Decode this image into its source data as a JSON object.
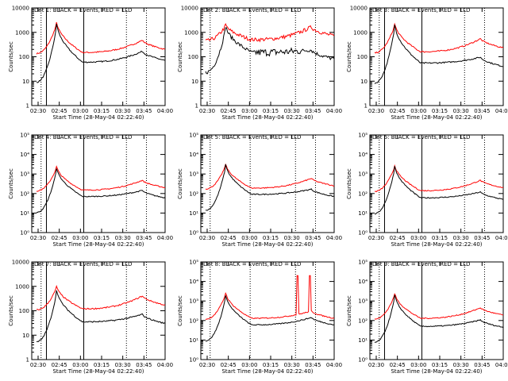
{
  "chart_data": [
    {
      "type": "line",
      "title": "Det 1: BLACK = Events, RED = LLD",
      "xlabel": "Start Time (28-May-04 02:22:40)",
      "ylabel": "Counts/sec",
      "yscale": "log",
      "ylim": [
        1,
        10000
      ],
      "yticks": [
        "1",
        "10",
        "100",
        "1000",
        "10000"
      ],
      "xticks": [
        "02:30",
        "02:45",
        "03:00",
        "03:15",
        "03:30",
        "03:45",
        "04:00"
      ],
      "xlim": [
        0,
        100
      ],
      "vlines_solid": [
        11,
        39
      ],
      "vlines_dotted": [
        7,
        71,
        86
      ],
      "shape": "A",
      "series": [
        {
          "color": "#000000",
          "peak": 2200,
          "base": 60,
          "end": 70
        },
        {
          "color": "#ff0000",
          "peak": 2500,
          "base": 150,
          "end": 200
        }
      ]
    },
    {
      "type": "line",
      "title": "Det 2: BLACK = Events, RED = LLD",
      "xlabel": "Start Time (28-May-04 02:22:40)",
      "ylabel": "Counts/sec",
      "yscale": "log",
      "ylim": [
        1,
        10000
      ],
      "yticks": [
        "1",
        "10",
        "100",
        "1000",
        "10000"
      ],
      "xticks": [
        "02:30",
        "02:45",
        "03:00",
        "03:15",
        "03:30",
        "03:45",
        "04:00"
      ],
      "xlim": [
        0,
        100
      ],
      "vlines_solid": [],
      "vlines_dotted": [
        7,
        37,
        71,
        86
      ],
      "shape": "B",
      "series": [
        {
          "color": "#000000",
          "peak": 1800,
          "base": 150,
          "end": 80
        },
        {
          "color": "#ff0000",
          "peak": 2000,
          "base": 500,
          "end": 700
        }
      ]
    },
    {
      "type": "line",
      "title": "Det 3: BLACK = Events, RED = LLD",
      "xlabel": "Start Time (28-May-04 02:22:40)",
      "ylabel": "Counts/sec",
      "yscale": "log",
      "ylim": [
        1,
        10000
      ],
      "yticks": [
        "1",
        "10",
        "100",
        "1000",
        "10000"
      ],
      "xticks": [
        "02:30",
        "02:45",
        "03:00",
        "03:15",
        "03:30",
        "03:45",
        "04:00"
      ],
      "xlim": [
        0,
        100
      ],
      "vlines_solid": [
        11,
        39
      ],
      "vlines_dotted": [
        7,
        71,
        86
      ],
      "shape": "A",
      "series": [
        {
          "color": "#000000",
          "peak": 2000,
          "base": 55,
          "end": 40
        },
        {
          "color": "#ff0000",
          "peak": 2200,
          "base": 160,
          "end": 230
        }
      ]
    },
    {
      "type": "line",
      "title": "Det 4: BLACK = Events, RED = LLD",
      "xlabel": "Start Time (28-May-04 02:22:40)",
      "ylabel": "Counts/sec",
      "yscale": "log",
      "ylim": [
        1,
        100000
      ],
      "yticks": [
        "10⁰",
        "10¹",
        "10²",
        "10³",
        "10⁴",
        "10⁵"
      ],
      "xticks": [
        "02:30",
        "02:45",
        "03:00",
        "03:15",
        "03:30",
        "03:45",
        "04:00"
      ],
      "xlim": [
        0,
        100
      ],
      "vlines_solid": [
        11,
        39
      ],
      "vlines_dotted": [
        7,
        71,
        86
      ],
      "shape": "A",
      "series": [
        {
          "color": "#000000",
          "peak": 2000,
          "base": 70,
          "end": 60
        },
        {
          "color": "#ff0000",
          "peak": 2400,
          "base": 150,
          "end": 200
        }
      ]
    },
    {
      "type": "line",
      "title": "Det 5: BLACK = Events, RED = LLD",
      "xlabel": "Start Time (28-May-04 02:22:40)",
      "ylabel": "Counts/sec",
      "yscale": "log",
      "ylim": [
        1,
        100000
      ],
      "yticks": [
        "10⁰",
        "10¹",
        "10²",
        "10³",
        "10⁴",
        "10⁵"
      ],
      "xticks": [
        "02:30",
        "02:45",
        "03:00",
        "03:15",
        "03:30",
        "03:45",
        "04:00"
      ],
      "xlim": [
        0,
        100
      ],
      "vlines_solid": [],
      "vlines_dotted": [
        7,
        37,
        71,
        86
      ],
      "shape": "A",
      "series": [
        {
          "color": "#000000",
          "peak": 3000,
          "base": 90,
          "end": 70
        },
        {
          "color": "#ff0000",
          "peak": 3200,
          "base": 190,
          "end": 250
        }
      ]
    },
    {
      "type": "line",
      "title": "Det 6: BLACK = Events, RED = LLD",
      "xlabel": "Start Time (28-May-04 02:22:40)",
      "ylabel": "Counts/sec",
      "yscale": "log",
      "ylim": [
        1,
        100000
      ],
      "yticks": [
        "10⁰",
        "10¹",
        "10²",
        "10³",
        "10⁴",
        "10⁵"
      ],
      "xticks": [
        "02:30",
        "02:45",
        "03:00",
        "03:15",
        "03:30",
        "03:45",
        "04:00"
      ],
      "xlim": [
        0,
        100
      ],
      "vlines_solid": [
        11,
        39
      ],
      "vlines_dotted": [
        7,
        71,
        86
      ],
      "shape": "A",
      "series": [
        {
          "color": "#000000",
          "peak": 2500,
          "base": 60,
          "end": 50
        },
        {
          "color": "#ff0000",
          "peak": 2700,
          "base": 140,
          "end": 200
        }
      ]
    },
    {
      "type": "line",
      "title": "Det 7: BLACK = Events, RED = LLD",
      "xlabel": "Start Time (28-May-04 02:22:40)",
      "ylabel": "Counts/sec",
      "yscale": "log",
      "ylim": [
        1,
        10000
      ],
      "yticks": [
        "1",
        "10",
        "100",
        "1000",
        "10000"
      ],
      "xticks": [
        "02:30",
        "02:45",
        "03:00",
        "03:15",
        "03:30",
        "03:45",
        "04:00"
      ],
      "xlim": [
        0,
        100
      ],
      "vlines_solid": [
        11,
        39
      ],
      "vlines_dotted": [
        7,
        71,
        86
      ],
      "shape": "A",
      "series": [
        {
          "color": "#000000",
          "peak": 700,
          "base": 35,
          "end": 30
        },
        {
          "color": "#ff0000",
          "peak": 1000,
          "base": 120,
          "end": 170
        }
      ]
    },
    {
      "type": "line",
      "title": "Det 8: BLACK = Events, RED = LLD",
      "xlabel": "Start Time (28-May-04 02:22:40)",
      "ylabel": "Counts/sec",
      "yscale": "log",
      "ylim": [
        1,
        100000
      ],
      "yticks": [
        "10⁰",
        "10¹",
        "10²",
        "10³",
        "10⁴",
        "10⁵"
      ],
      "xticks": [
        "02:30",
        "02:45",
        "03:00",
        "03:15",
        "03:30",
        "03:45",
        "04:00"
      ],
      "xlim": [
        0,
        100
      ],
      "vlines_solid": [],
      "vlines_dotted": [
        7,
        37,
        71,
        86
      ],
      "shape": "C",
      "series": [
        {
          "color": "#000000",
          "peak": 2000,
          "base": 60,
          "end": 60
        },
        {
          "color": "#ff0000",
          "peak": 2600,
          "base": 130,
          "end": 130
        }
      ]
    },
    {
      "type": "line",
      "title": "Det 9: BLACK = Events, RED = LLD",
      "xlabel": "Start Time (28-May-04 02:22:40)",
      "ylabel": "Counts/sec",
      "yscale": "log",
      "ylim": [
        1,
        100000
      ],
      "yticks": [
        "10⁰",
        "10¹",
        "10²",
        "10³",
        "10⁴",
        "10⁵"
      ],
      "xticks": [
        "02:30",
        "02:45",
        "03:00",
        "03:15",
        "03:30",
        "03:45",
        "04:00"
      ],
      "xlim": [
        0,
        100
      ],
      "vlines_solid": [
        11,
        39
      ],
      "vlines_dotted": [
        7,
        71,
        86
      ],
      "shape": "A",
      "series": [
        {
          "color": "#000000",
          "peak": 2000,
          "base": 50,
          "end": 45
        },
        {
          "color": "#ff0000",
          "peak": 2400,
          "base": 130,
          "end": 190
        }
      ]
    }
  ]
}
